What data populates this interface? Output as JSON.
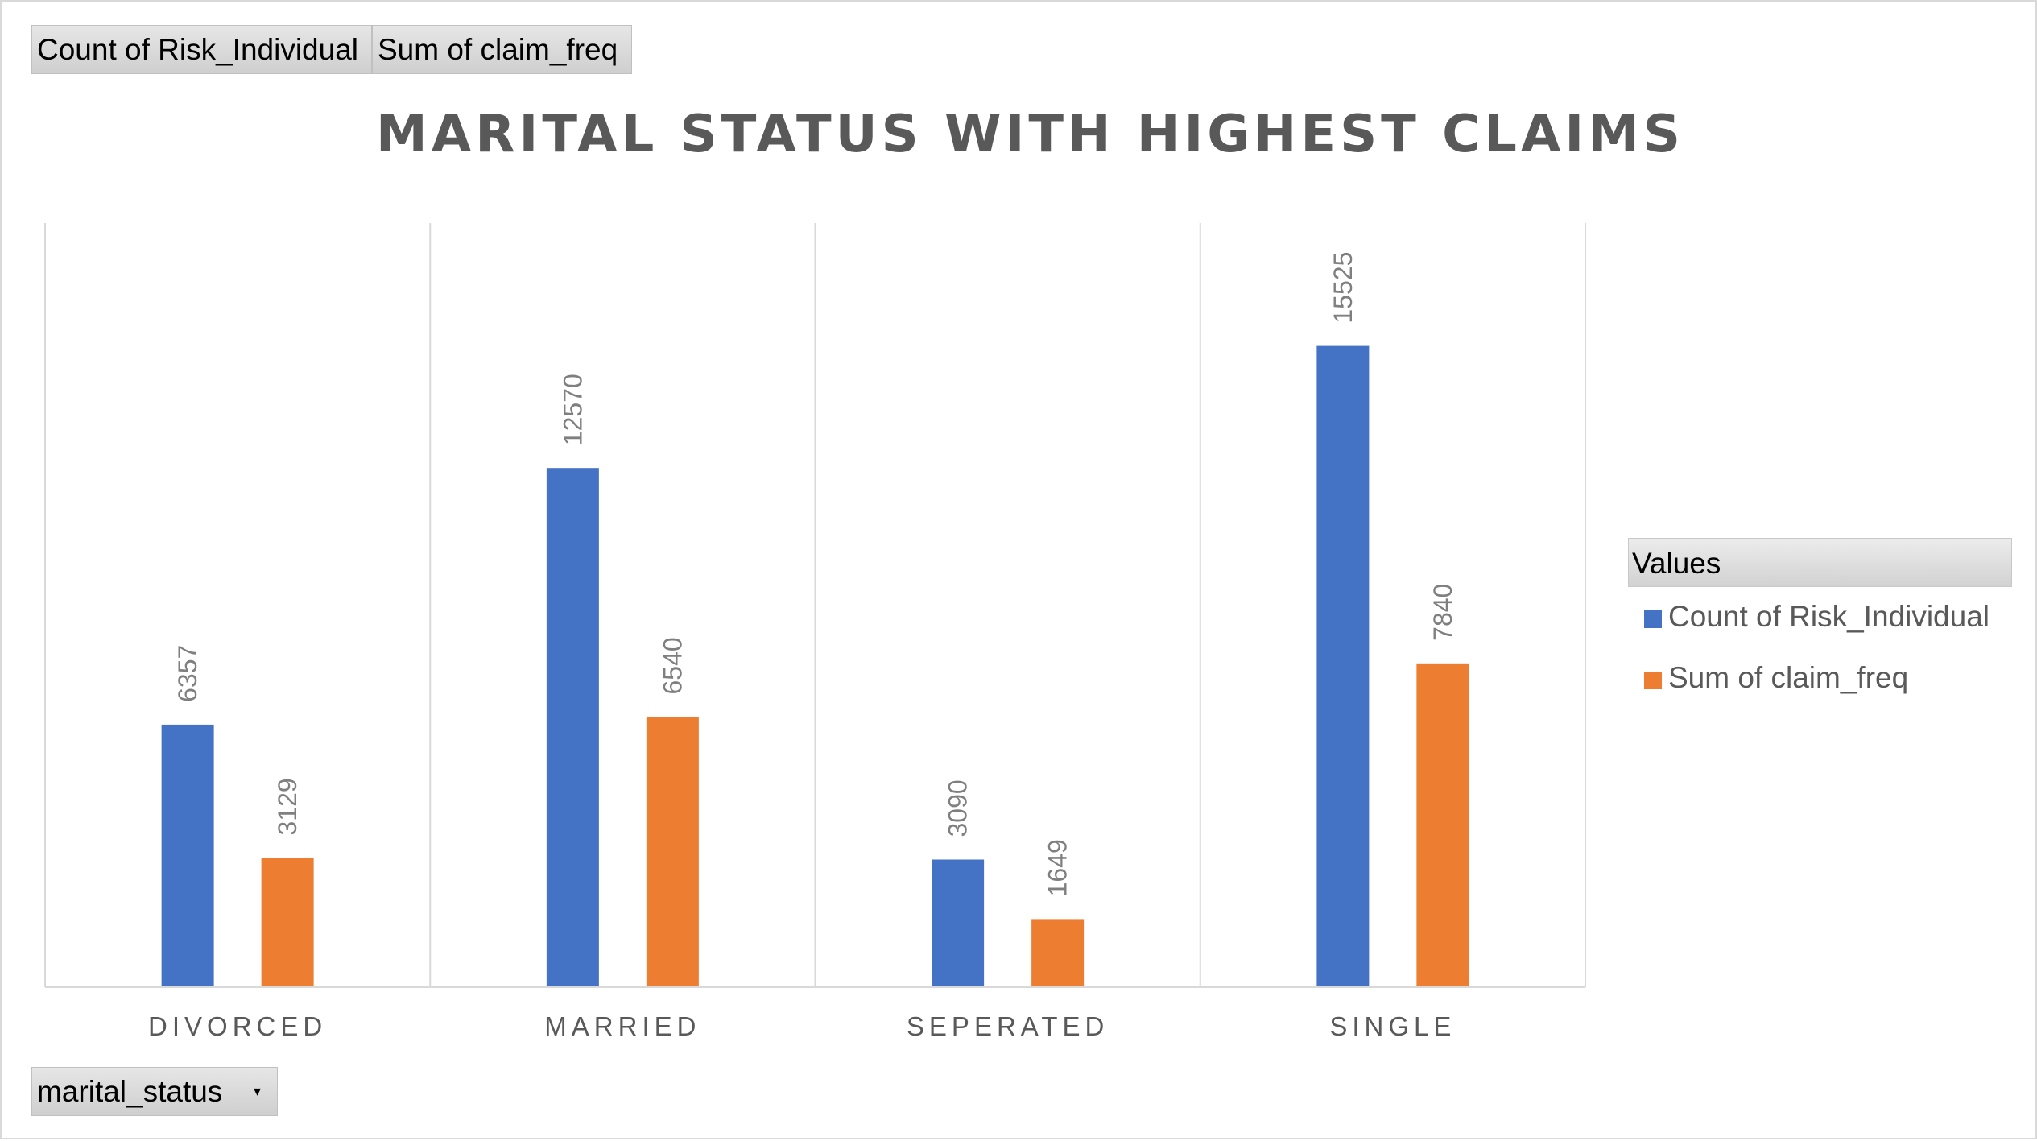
{
  "field_buttons": {
    "values": [
      "Count of Risk_Individual",
      "Sum of claim_freq"
    ],
    "axis_field": "marital_status",
    "dropdown_glyph": "▾"
  },
  "legend": {
    "header": "Values",
    "items": [
      "Count of Risk_Individual",
      "Sum of claim_freq"
    ]
  },
  "colors": {
    "series1": "#4472C4",
    "series2": "#ED7D31",
    "gridline": "#d9d9d9",
    "text": "#595959",
    "data_label": "#7f7f7f"
  },
  "chart_data": {
    "type": "bar",
    "title": "MARITAL STATUS WITH HIGHEST CLAIMS",
    "categories": [
      "DIVORCED",
      "MARRIED",
      "SEPERATED",
      "SINGLE"
    ],
    "series": [
      {
        "name": "Count of Risk_Individual",
        "values": [
          6357,
          12570,
          3090,
          15525
        ]
      },
      {
        "name": "Sum of claim_freq",
        "values": [
          3129,
          6540,
          1649,
          7840
        ]
      }
    ],
    "xlabel": "",
    "ylabel": "",
    "ylim": [
      0,
      18500
    ],
    "grid": "vertical-category-separators",
    "legend_position": "right",
    "data_labels": "rotated-above"
  }
}
